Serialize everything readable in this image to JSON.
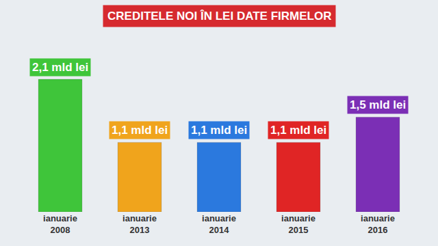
{
  "chart_data": {
    "type": "bar",
    "title": "CREDITELE NOI ÎN LEI DATE FIRMELOR",
    "categories": [
      "ianuarie 2008",
      "ianuarie 2013",
      "ianuarie 2014",
      "ianuarie 2015",
      "ianuarie 2016"
    ],
    "values": [
      2.1,
      1.1,
      1.1,
      1.1,
      1.5
    ],
    "value_labels": [
      "2,1 mld lei",
      "1,1 mld lei",
      "1,1 mld lei",
      "1,1 mld lei",
      "1,5 mld lei"
    ],
    "colors": [
      "#3fc53a",
      "#f0a41c",
      "#2b79de",
      "#e02525",
      "#7b2fb5"
    ],
    "data_labels": true,
    "tick_labels": "x",
    "grid": false
  }
}
